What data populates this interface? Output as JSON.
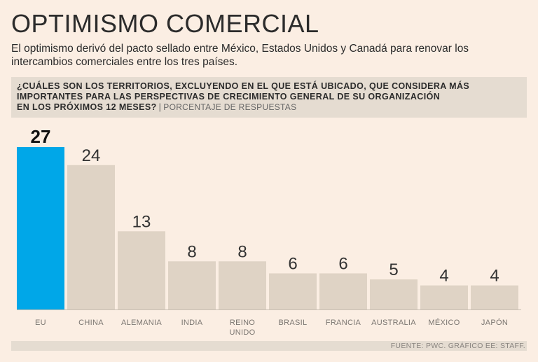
{
  "header": {
    "title": "OPTIMISMO COMERCIAL",
    "subtitle": "El optimismo derivó del pacto sellado entre México, Estados Unidos y Canadá para renovar los intercambios comerciales entre los tres países."
  },
  "question": {
    "line1": "¿CUÁLES SON LOS TERRITORIOS, EXCLUYENDO EN EL QUE ESTÁ UBICADO, QUE CONSIDERA MÁS",
    "line2": "IMPORTANTES PARA LAS PERSPECTIVAS DE CRECIMIENTO GENERAL DE SU ORGANIZACIÓN",
    "line3": "EN LOS PRÓXIMOS 12 MESES?",
    "separator": "|",
    "unit": "PORCENTAJE DE RESPUESTAS"
  },
  "footer": {
    "source": "FUENTE: PWC. GRÁFICO EE: STAFF."
  },
  "colors": {
    "highlight": "#00a7e8",
    "bar": "#dfd3c5",
    "baseline": "#c9beb2",
    "label": "#7a7570"
  },
  "chart_data": {
    "type": "bar",
    "title": "OPTIMISMO COMERCIAL",
    "ylabel": "PORCENTAJE DE RESPUESTAS",
    "xlabel": "",
    "ylim": [
      0,
      27
    ],
    "categories": [
      [
        "EU"
      ],
      [
        "CHINA"
      ],
      [
        "ALEMANIA"
      ],
      [
        "INDIA"
      ],
      [
        "REINO",
        "UNIDO"
      ],
      [
        "BRASIL"
      ],
      [
        "FRANCIA"
      ],
      [
        "AUSTRALIA"
      ],
      [
        "MÉXICO"
      ],
      [
        "JAPÓN"
      ]
    ],
    "values": [
      27,
      24,
      13,
      8,
      8,
      6,
      6,
      5,
      4,
      4
    ],
    "highlight_index": 0
  }
}
